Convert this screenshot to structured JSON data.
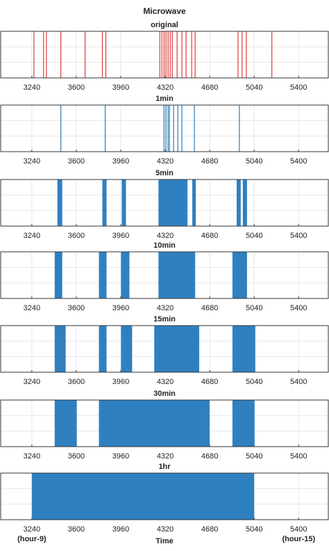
{
  "title": "Microwave",
  "chart_data": [
    {
      "type": "event",
      "title": "original",
      "color": "#e03a3a",
      "x": [
        3257,
        3335,
        3358,
        3475,
        3671,
        3811,
        3839,
        4276,
        4293,
        4310,
        4326,
        4343,
        4360,
        4377,
        4416,
        4455,
        4489,
        4534,
        4562,
        4909,
        4942,
        4976,
        5183
      ],
      "xlim": [
        2988,
        5640
      ],
      "xticks": [
        3240,
        3600,
        3960,
        4320,
        4680,
        5040,
        5400
      ]
    },
    {
      "type": "event",
      "title": "1min",
      "color": "#2b7bba",
      "x": [
        3475,
        3834,
        4310,
        4326,
        4343,
        4354,
        4388,
        4422,
        4455,
        4556,
        4920
      ],
      "xlim": [
        2988,
        5640
      ],
      "xticks": [
        3240,
        3600,
        3960,
        4320,
        4680,
        5040,
        5400
      ]
    },
    {
      "type": "span",
      "title": "5min",
      "color": "#2f80c0",
      "intervals": [
        [
          3447,
          3486
        ],
        [
          3811,
          3845
        ],
        [
          3968,
          4002
        ],
        [
          4265,
          4500
        ],
        [
          4539,
          4567
        ],
        [
          4898,
          4931
        ],
        [
          4948,
          4982
        ]
      ],
      "xlim": [
        2988,
        5640
      ],
      "xticks": [
        3240,
        3600,
        3960,
        4320,
        4680,
        5040,
        5400
      ]
    },
    {
      "type": "span",
      "title": "10min",
      "color": "#2f80c0",
      "intervals": [
        [
          3425,
          3486
        ],
        [
          3783,
          3845
        ],
        [
          3962,
          4030
        ],
        [
          4265,
          4562
        ],
        [
          4864,
          4982
        ]
      ],
      "xlim": [
        2988,
        5640
      ],
      "xticks": [
        3240,
        3600,
        3960,
        4320,
        4680,
        5040,
        5400
      ]
    },
    {
      "type": "span",
      "title": "15min",
      "color": "#2f80c0",
      "intervals": [
        [
          3425,
          3514
        ],
        [
          3783,
          3845
        ],
        [
          3962,
          4052
        ],
        [
          4231,
          4595
        ],
        [
          4864,
          5049
        ]
      ],
      "xlim": [
        2988,
        5640
      ],
      "xticks": [
        3240,
        3600,
        3960,
        4320,
        4680,
        5040,
        5400
      ]
    },
    {
      "type": "span",
      "title": "30min",
      "color": "#2f80c0",
      "intervals": [
        [
          3425,
          3604
        ],
        [
          3783,
          4679
        ],
        [
          4864,
          5043
        ]
      ],
      "xlim": [
        2988,
        5640
      ],
      "xticks": [
        3240,
        3600,
        3960,
        4320,
        4680,
        5040,
        5400
      ]
    },
    {
      "type": "span",
      "title": "1hr",
      "color": "#2f80c0",
      "intervals": [
        [
          3240,
          5040
        ]
      ],
      "xlim": [
        2988,
        5640
      ],
      "xticks": [
        3240,
        3600,
        3960,
        4320,
        4680,
        5040,
        5400
      ],
      "xlabel": "Time",
      "annotations": [
        {
          "text": "(hour-9)",
          "x": 3240
        },
        {
          "text": "(hour-15)",
          "x": 5400
        }
      ]
    }
  ]
}
